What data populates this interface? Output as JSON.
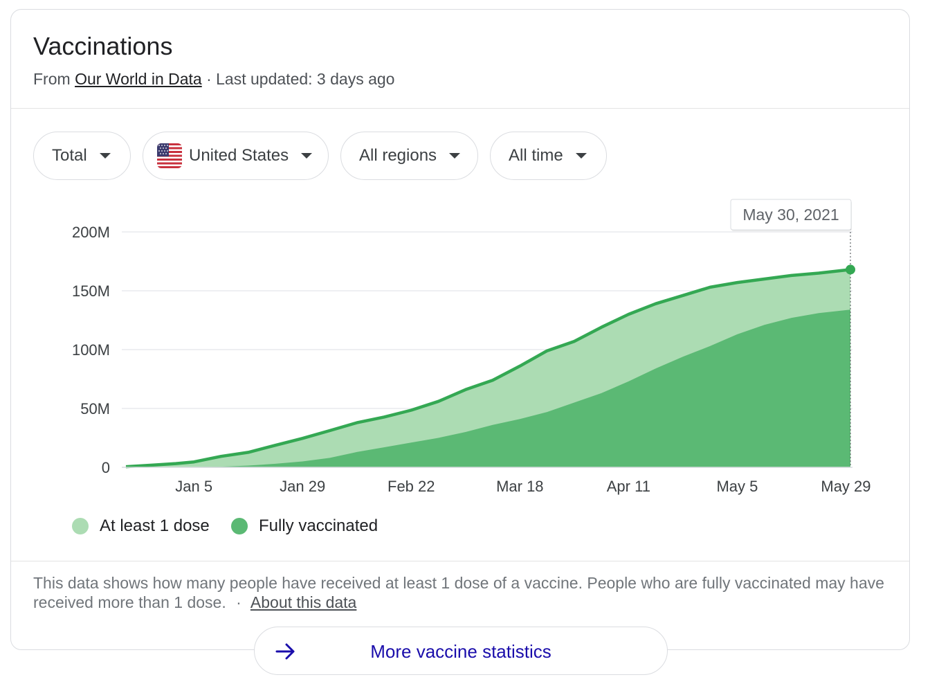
{
  "card": {
    "title": "Vaccinations",
    "from_prefix": "From",
    "source_link": "Our World in Data",
    "updated_text": "· Last updated: 3 days ago"
  },
  "filters": {
    "metric": "Total",
    "country": "United States",
    "region": "All regions",
    "time_range": "All time"
  },
  "icons": {
    "country_flag": "us-flag-icon",
    "dropdown": "caret-down-icon",
    "more": "arrow-right-icon"
  },
  "colors": {
    "at_least_one_dose": "#acdcb3",
    "fully_vaccinated": "#5bb974",
    "line": "#34a853",
    "link": "#1a0dab"
  },
  "chart_data": {
    "type": "area",
    "title": "",
    "xlabel": "",
    "ylabel": "",
    "ylim": [
      0,
      200000000
    ],
    "y_ticks": [
      0,
      50000000,
      100000000,
      150000000,
      200000000
    ],
    "y_tick_labels": [
      "0",
      "50M",
      "100M",
      "150M",
      "200M"
    ],
    "x_day_range": [
      -11,
      149
    ],
    "x_ticks": [
      {
        "day": 4,
        "label": "Jan 5"
      },
      {
        "day": 28,
        "label": "Jan 29"
      },
      {
        "day": 52,
        "label": "Feb 22"
      },
      {
        "day": 76,
        "label": "Mar 18"
      },
      {
        "day": 100,
        "label": "Apr 11"
      },
      {
        "day": 124,
        "label": "May 5"
      },
      {
        "day": 148,
        "label": "May 29"
      }
    ],
    "day_zero": "2021-01-01",
    "hover": {
      "label": "May 30, 2021",
      "day": 149
    },
    "days": [
      -11,
      -5,
      0,
      4,
      10,
      16,
      22,
      28,
      34,
      40,
      46,
      52,
      58,
      64,
      70,
      76,
      82,
      88,
      94,
      100,
      106,
      112,
      118,
      124,
      130,
      136,
      142,
      149
    ],
    "series": [
      {
        "name": "At least 1 dose",
        "values": [
          0.5,
          1.9,
          3.2,
          4.6,
          9.3,
          12.7,
          18.7,
          24.6,
          31.2,
          37.9,
          42.7,
          48.5,
          56.0,
          66.0,
          74.0,
          86.0,
          99.0,
          107.0,
          119.0,
          130.0,
          139.0,
          146.0,
          153.0,
          157.0,
          160.0,
          163.0,
          165.0,
          168.0
        ]
      },
      {
        "name": "Fully vaccinated",
        "values": [
          0,
          0,
          0,
          0.3,
          0.5,
          1.5,
          3.0,
          5.0,
          8.0,
          13.0,
          17.0,
          21.0,
          25.0,
          30.0,
          36.0,
          41.0,
          47.0,
          55.0,
          63.0,
          73.0,
          84.0,
          94.0,
          103.0,
          113.0,
          121.0,
          127.0,
          131.0,
          134.0
        ]
      }
    ],
    "value_unit": "millions",
    "legend": [
      "At least 1 dose",
      "Fully vaccinated"
    ],
    "legend_position": "bottom-left"
  },
  "footer": {
    "description": "This data shows how many people have received at least 1 dose of a vaccine. People who are fully vaccinated may have received more than 1 dose.",
    "separator": "·",
    "about_link": "About this data",
    "more_button": "More vaccine statistics"
  }
}
